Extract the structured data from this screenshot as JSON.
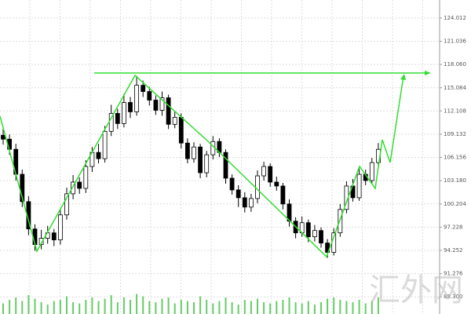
{
  "chart_data": {
    "type": "candlestick",
    "open": [
      109.0,
      108.5,
      107.2,
      104.0,
      100.5,
      97.0,
      95.0,
      95.8,
      96.5,
      95.6,
      98.8,
      101.5,
      103.0,
      102.2,
      105.0,
      106.8,
      106.0,
      109.5,
      111.8,
      110.5,
      113.2,
      112.0,
      115.4,
      114.6,
      113.5,
      112.2,
      113.8,
      110.4,
      111.3,
      108.0,
      106.0,
      107.5,
      104.2,
      106.5,
      108.2,
      106.8,
      103.5,
      102.0,
      101.0,
      99.8,
      100.9,
      103.8,
      105.0,
      103.0,
      102.5,
      100.2,
      98.0,
      96.5,
      97.8,
      96.0,
      96.8,
      95.2,
      94.0,
      96.5,
      99.5,
      102.5,
      101.0,
      104.0,
      103.2,
      105.5
    ],
    "high": [
      109.8,
      109.1,
      107.9,
      104.6,
      101.2,
      97.6,
      96.9,
      97.4,
      97.0,
      99.5,
      102.3,
      103.9,
      103.6,
      105.8,
      107.5,
      107.9,
      110.2,
      112.9,
      112.4,
      114.3,
      113.9,
      116.6,
      116.0,
      115.2,
      114.1,
      114.6,
      114.2,
      112.0,
      111.8,
      108.6,
      108.1,
      107.9,
      107.0,
      108.9,
      108.6,
      107.2,
      104.0,
      102.6,
      101.7,
      101.5,
      104.5,
      105.6,
      105.4,
      103.7,
      102.9,
      100.8,
      98.5,
      98.6,
      98.2,
      97.5,
      97.2,
      95.7,
      97.1,
      100.2,
      103.1,
      103.4,
      104.8,
      104.6,
      106.1,
      108.0
    ],
    "low": [
      107.8,
      106.5,
      103.2,
      99.8,
      96.2,
      94.2,
      94.4,
      95.1,
      94.8,
      95.0,
      98.2,
      100.8,
      101.5,
      101.6,
      104.3,
      105.4,
      105.5,
      108.9,
      109.8,
      110.0,
      111.2,
      111.5,
      113.9,
      112.8,
      111.6,
      111.5,
      109.8,
      109.9,
      107.3,
      105.4,
      105.5,
      103.5,
      103.6,
      105.9,
      106.2,
      102.8,
      101.4,
      99.8,
      99.1,
      99.2,
      100.3,
      103.2,
      102.4,
      101.9,
      99.5,
      97.3,
      95.8,
      96.0,
      95.3,
      95.4,
      94.6,
      93.3,
      93.6,
      96.0,
      99.0,
      100.5,
      100.6,
      102.6,
      102.7,
      104.9
    ],
    "close": [
      108.5,
      107.2,
      104.0,
      100.5,
      97.0,
      95.0,
      95.8,
      96.5,
      95.6,
      98.8,
      101.5,
      103.0,
      102.2,
      105.0,
      106.8,
      106.0,
      109.5,
      111.8,
      110.5,
      113.2,
      112.0,
      115.4,
      114.6,
      113.5,
      112.2,
      113.8,
      110.4,
      111.3,
      108.0,
      106.0,
      107.5,
      104.2,
      106.5,
      108.2,
      106.8,
      103.5,
      102.0,
      101.0,
      99.8,
      100.9,
      103.8,
      105.0,
      103.0,
      102.5,
      100.2,
      98.0,
      96.5,
      97.8,
      96.0,
      96.8,
      95.2,
      94.0,
      96.5,
      99.5,
      102.5,
      101.0,
      104.0,
      103.2,
      105.5,
      107.2
    ],
    "volume": [
      45,
      60,
      70,
      55,
      80,
      65,
      50,
      40,
      55,
      60,
      75,
      50,
      45,
      60,
      70,
      55,
      65,
      80,
      50,
      70,
      60,
      85,
      75,
      55,
      50,
      65,
      70,
      45,
      60,
      55,
      50,
      75,
      60,
      45,
      55,
      70,
      50,
      40,
      60,
      55,
      65,
      50,
      45,
      55,
      60,
      70,
      50,
      45,
      55,
      40,
      50,
      65,
      70,
      60,
      55,
      50,
      60,
      45,
      55,
      70
    ],
    "volume_ylim": [
      0,
      100
    ],
    "ylim": [
      86.11,
      126.32
    ],
    "yticks": [
      {
        "value": 124.012,
        "label": "124.012"
      },
      {
        "value": 121.036,
        "label": "121.036"
      },
      {
        "value": 118.06,
        "label": "118.060"
      },
      {
        "value": 115.084,
        "label": "115.084"
      },
      {
        "value": 112.108,
        "label": "112.108"
      },
      {
        "value": 109.132,
        "label": "109.132"
      },
      {
        "value": 106.156,
        "label": "106.156"
      },
      {
        "value": 103.18,
        "label": "103.180"
      },
      {
        "value": 100.204,
        "label": "100.204"
      },
      {
        "value": 97.228,
        "label": "97.228"
      },
      {
        "value": 94.252,
        "label": "94.252"
      },
      {
        "value": 91.276,
        "label": "91.276"
      },
      {
        "value": 88.3,
        "label": "88.300"
      }
    ],
    "grid": true,
    "colors": {
      "candle": "#000000",
      "annotation": "#33dd33",
      "volume": "#66cc66"
    },
    "watermark": "汇外网"
  }
}
